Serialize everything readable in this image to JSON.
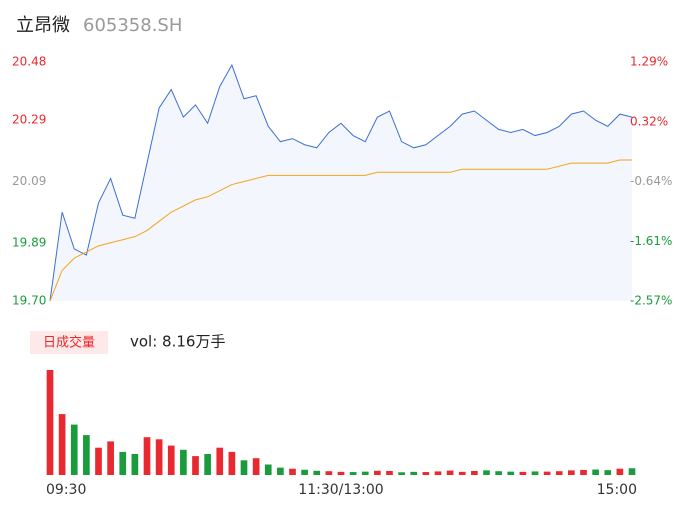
{
  "chart_data": {
    "type": "line",
    "title": "立昂微",
    "subtitle": "605358.SH",
    "categories": [
      "09:30",
      null,
      null,
      null,
      null,
      null,
      null,
      null,
      null,
      null,
      null,
      null,
      null,
      null,
      null,
      null,
      null,
      null,
      null,
      null,
      null,
      null,
      null,
      null,
      "11:30/13:00",
      null,
      null,
      null,
      null,
      null,
      null,
      null,
      null,
      null,
      null,
      null,
      null,
      null,
      null,
      null,
      null,
      null,
      null,
      null,
      null,
      null,
      null,
      null,
      "15:00"
    ],
    "series": [
      {
        "color": "#3b6fd6",
        "values": [
          19.7,
          19.99,
          19.87,
          19.85,
          20.02,
          20.1,
          19.98,
          19.97,
          20.15,
          20.33,
          20.39,
          20.3,
          20.34,
          20.28,
          20.4,
          20.47,
          20.36,
          20.37,
          20.27,
          20.22,
          20.23,
          20.21,
          20.2,
          20.25,
          20.28,
          20.24,
          20.22,
          20.3,
          20.32,
          20.22,
          20.2,
          20.21,
          20.24,
          20.27,
          20.31,
          20.32,
          20.29,
          20.26,
          20.25,
          20.26,
          20.24,
          20.25,
          20.27,
          20.31,
          20.32,
          20.29,
          20.27,
          20.31,
          20.3
        ]
      },
      {
        "color": "#f2a516",
        "values": [
          19.7,
          19.8,
          19.84,
          19.86,
          19.88,
          19.89,
          19.9,
          19.91,
          19.93,
          19.96,
          19.99,
          20.01,
          20.03,
          20.04,
          20.06,
          20.08,
          20.09,
          20.1,
          20.11,
          20.11,
          20.11,
          20.11,
          20.11,
          20.11,
          20.11,
          20.11,
          20.11,
          20.12,
          20.12,
          20.12,
          20.12,
          20.12,
          20.12,
          20.12,
          20.13,
          20.13,
          20.13,
          20.13,
          20.13,
          20.13,
          20.13,
          20.13,
          20.14,
          20.15,
          20.15,
          20.15,
          20.15,
          20.16,
          20.16
        ]
      }
    ],
    "ylim": [
      19.7,
      20.48
    ],
    "yticks": [
      {
        "value": 19.7,
        "label": "19.70"
      },
      19.89,
      20.09,
      20.29,
      20.48
    ],
    "y2lim": [
      -2.57,
      1.29
    ],
    "y2ticks": [
      {
        "value": -2.57,
        "label": "-2.57%"
      },
      {
        "value": -1.61,
        "label": "-1.61%"
      },
      {
        "value": -0.64,
        "label": "-0.64%"
      },
      {
        "value": 0.32,
        "label": "0.32%"
      },
      {
        "value": 1.29,
        "label": "1.29%"
      }
    ],
    "up_color": "#e8292f",
    "down_color": "#1a9c3c",
    "flat_color": "#999999",
    "volume": {
      "label": "日成交量",
      "summary": "vol: 8.16万手",
      "values": [
        5000,
        2900,
        2400,
        1900,
        1300,
        1600,
        1100,
        1000,
        1800,
        1700,
        1400,
        1200,
        900,
        1000,
        1300,
        1100,
        700,
        800,
        500,
        350,
        300,
        250,
        200,
        180,
        150,
        140,
        160,
        200,
        190,
        130,
        150,
        140,
        170,
        210,
        150,
        190,
        220,
        180,
        160,
        150,
        170,
        160,
        180,
        220,
        240,
        260,
        230,
        300,
        320
      ]
    }
  }
}
